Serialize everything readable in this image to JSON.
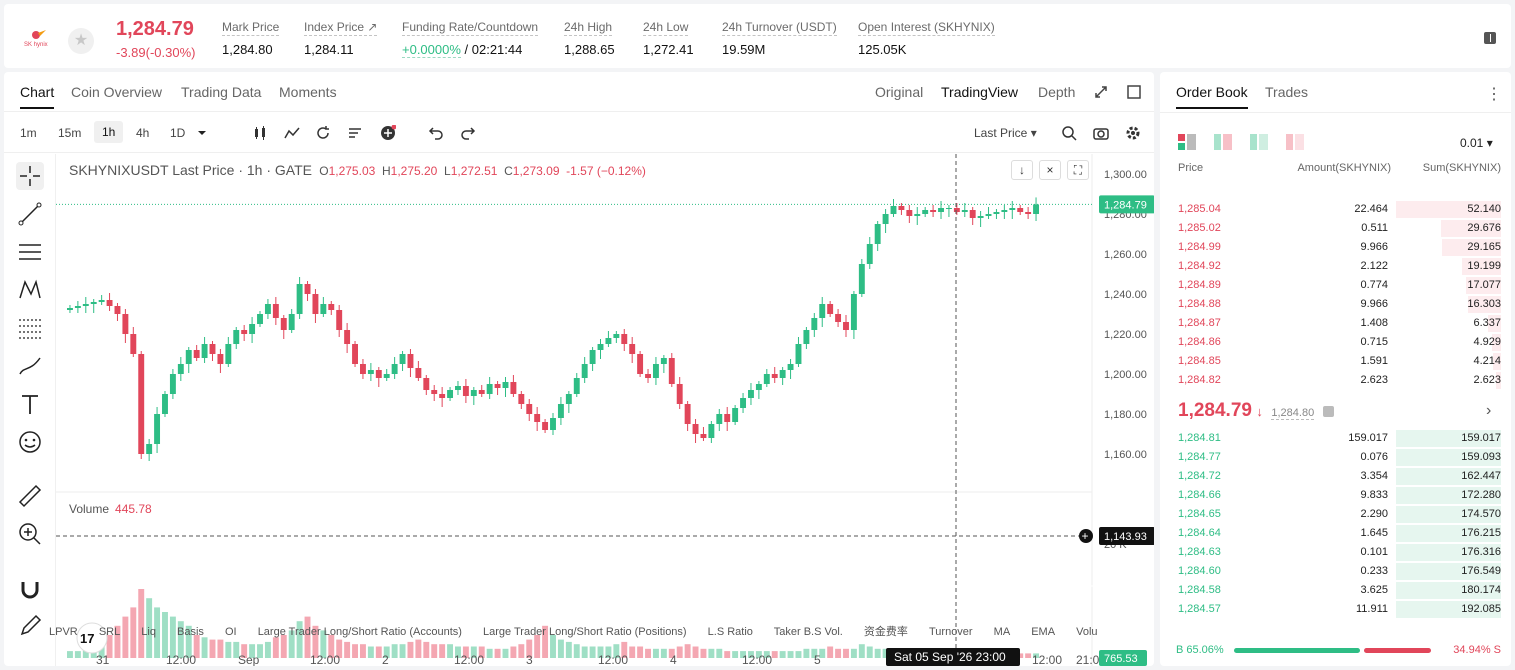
{
  "header": {
    "last_price": "1,284.79",
    "change": "-3.89(-0.30%)",
    "stats": [
      {
        "label": "Mark Price",
        "value": "1,284.80"
      },
      {
        "label": "Index Price ↗",
        "value": "1,284.11"
      },
      {
        "label": "Funding Rate/Countdown",
        "value_green": "+0.0000%",
        "value": " / 02:21:44"
      },
      {
        "label": "24h High",
        "value": "1,288.65"
      },
      {
        "label": "24h Low",
        "value": "1,272.41"
      },
      {
        "label": "24h Turnover (USDT)",
        "value": "19.59M"
      },
      {
        "label": "Open Interest (SKHYNIX)",
        "value": "125.05K"
      }
    ]
  },
  "chart_tabs": [
    "Chart",
    "Coin Overview",
    "Trading Data",
    "Moments"
  ],
  "view_tabs": [
    "Original",
    "TradingView",
    "Depth"
  ],
  "intervals": [
    "1m",
    "15m",
    "1h",
    "4h",
    "1D"
  ],
  "price_source": "Last Price",
  "legend": {
    "symbol": "SKHYNIXUSDT Last Price · 1h · GATE",
    "o_label": "O",
    "o": "1,275.03",
    "h_label": "H",
    "h": "1,275.20",
    "l_label": "L",
    "l": "1,272.51",
    "c_label": "C",
    "c": "1,273.09",
    "chg": "-1.57 (−0.12%)"
  },
  "volume_legend": {
    "label": "Volume",
    "value": "445.78"
  },
  "crosshair": {
    "price_label": "1,143.93",
    "time_label": "Sat 05 Sep '26   23:00",
    "last_label": "1,284.79",
    "volume_label": "765.53"
  },
  "indicators": [
    "LPVR",
    "SRL",
    "Liq",
    "Basis",
    "OI",
    "Large Trader Long/Short Ratio (Accounts)",
    "Large Trader Long/Short Ratio (Positions)",
    "L.S Ratio",
    "Taker B.S Vol.",
    "资金费率",
    "Turnover",
    "MA",
    "EMA",
    "Volu"
  ],
  "chart_data": {
    "type": "candlestick",
    "title": "SKHYNIXUSDT Last Price · 1h · GATE",
    "y_ticks": [
      "1,300.00",
      "1,280.00",
      "1,260.00",
      "1,240.00",
      "1,220.00",
      "1,200.00",
      "1,180.00",
      "1,160.00"
    ],
    "ylim": [
      1145,
      1305
    ],
    "x_ticks": [
      "31",
      "12:00",
      "Sep",
      "12:00",
      "2",
      "12:00",
      "3",
      "12:00",
      "4",
      "12:00",
      "5",
      "12",
      "12:00",
      "21:0"
    ],
    "volume_tick": "20 K",
    "close_path": [
      1233,
      1234,
      1235,
      1236,
      1237,
      1234,
      1230,
      1220,
      1210,
      1160,
      1165,
      1180,
      1190,
      1200,
      1205,
      1212,
      1208,
      1215,
      1210,
      1205,
      1215,
      1222,
      1220,
      1225,
      1230,
      1235,
      1228,
      1222,
      1230,
      1245,
      1240,
      1230,
      1235,
      1232,
      1222,
      1215,
      1205,
      1200,
      1202,
      1198,
      1200,
      1205,
      1210,
      1203,
      1198,
      1192,
      1190,
      1188,
      1192,
      1194,
      1189,
      1192,
      1190,
      1195,
      1193,
      1196,
      1190,
      1185,
      1180,
      1176,
      1172,
      1178,
      1185,
      1190,
      1198,
      1205,
      1212,
      1215,
      1218,
      1220,
      1215,
      1210,
      1200,
      1198,
      1205,
      1208,
      1195,
      1185,
      1175,
      1170,
      1168,
      1175,
      1180,
      1176,
      1183,
      1188,
      1192,
      1195,
      1200,
      1198,
      1202,
      1205,
      1215,
      1222,
      1228,
      1235,
      1230,
      1226,
      1222,
      1240,
      1255,
      1265,
      1275,
      1280,
      1284,
      1282,
      1279,
      1280,
      1282,
      1281,
      1283,
      1283,
      1281,
      1282,
      1278,
      1279,
      1280,
      1281,
      1282,
      1283,
      1281,
      1280,
      1284.79
    ],
    "volume_profile": [
      3,
      3,
      4,
      5,
      7,
      10,
      14,
      18,
      22,
      30,
      26,
      22,
      20,
      18,
      16,
      14,
      10,
      9,
      8,
      8,
      7,
      7,
      6,
      6,
      6,
      7,
      9,
      10,
      12,
      16,
      18,
      14,
      12,
      10,
      8,
      7,
      6,
      6,
      5,
      5,
      5,
      6,
      6,
      7,
      8,
      7,
      6,
      6,
      6,
      5,
      5,
      5,
      5,
      4,
      4,
      4,
      5,
      6,
      8,
      10,
      14,
      10,
      8,
      7,
      6,
      5,
      5,
      5,
      5,
      6,
      7,
      5,
      5,
      4,
      4,
      4,
      4,
      5,
      6,
      5,
      4,
      4,
      4,
      3,
      3,
      3,
      3,
      3,
      3,
      3,
      3,
      3,
      3,
      4,
      4,
      4,
      5,
      4,
      4,
      4,
      6,
      5,
      4,
      4,
      4,
      3,
      3,
      3,
      3,
      2,
      2,
      2,
      2,
      2,
      2,
      2,
      2,
      2,
      2,
      2,
      2,
      2,
      2,
      2,
      2
    ]
  },
  "order_book": {
    "tabs": [
      "Order Book",
      "Trades"
    ],
    "precision": "0.01",
    "headers": {
      "price": "Price",
      "amount": "Amount(SKHYNIX)",
      "sum": "Sum(SKHYNIX)"
    },
    "asks": [
      {
        "price": "1,285.04",
        "amount": "22.464",
        "sum": "52.140",
        "depth": 1.0
      },
      {
        "price": "1,285.02",
        "amount": "0.511",
        "sum": "29.676",
        "depth": 0.57
      },
      {
        "price": "1,284.99",
        "amount": "9.966",
        "sum": "29.165",
        "depth": 0.56
      },
      {
        "price": "1,284.92",
        "amount": "2.122",
        "sum": "19.199",
        "depth": 0.37
      },
      {
        "price": "1,284.89",
        "amount": "0.774",
        "sum": "17.077",
        "depth": 0.33
      },
      {
        "price": "1,284.88",
        "amount": "9.966",
        "sum": "16.303",
        "depth": 0.31
      },
      {
        "price": "1,284.87",
        "amount": "1.408",
        "sum": "6.337",
        "depth": 0.12
      },
      {
        "price": "1,284.86",
        "amount": "0.715",
        "sum": "4.929",
        "depth": 0.09
      },
      {
        "price": "1,284.85",
        "amount": "1.591",
        "sum": "4.214",
        "depth": 0.08
      },
      {
        "price": "1,284.82",
        "amount": "2.623",
        "sum": "2.623",
        "depth": 0.05
      }
    ],
    "mid_price": "1,284.79",
    "mid_arrow": "↓",
    "mark_price": "1,284.80",
    "bids": [
      {
        "price": "1,284.81",
        "amount": "159.017",
        "sum": "159.017",
        "depth": 1.0
      },
      {
        "price": "1,284.77",
        "amount": "0.076",
        "sum": "159.093",
        "depth": 1.0
      },
      {
        "price": "1,284.72",
        "amount": "3.354",
        "sum": "162.447",
        "depth": 1.0
      },
      {
        "price": "1,284.66",
        "amount": "9.833",
        "sum": "172.280",
        "depth": 1.0
      },
      {
        "price": "1,284.65",
        "amount": "2.290",
        "sum": "174.570",
        "depth": 1.0
      },
      {
        "price": "1,284.64",
        "amount": "1.645",
        "sum": "176.215",
        "depth": 1.0
      },
      {
        "price": "1,284.63",
        "amount": "0.101",
        "sum": "176.316",
        "depth": 1.0
      },
      {
        "price": "1,284.60",
        "amount": "0.233",
        "sum": "176.549",
        "depth": 1.0
      },
      {
        "price": "1,284.58",
        "amount": "3.625",
        "sum": "180.174",
        "depth": 1.0
      },
      {
        "price": "1,284.57",
        "amount": "11.911",
        "sum": "192.085",
        "depth": 1.0
      }
    ],
    "buy_ratio": "B 65.06%",
    "sell_ratio": "34.94% S",
    "buy_fraction": 0.6506
  },
  "colors": {
    "up": "#2ebd85",
    "down": "#e1465a"
  }
}
